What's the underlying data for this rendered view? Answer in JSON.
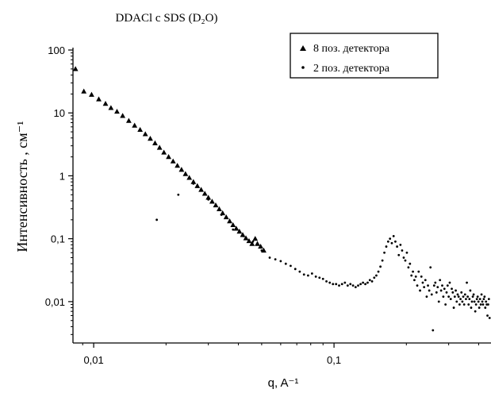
{
  "chart_data": {
    "type": "scatter",
    "title": "DDACl c SDS (D₂O)",
    "xlabel": "q, A⁻¹",
    "ylabel": "Интенсивность ,  см⁻¹",
    "x_scale": "log",
    "y_scale": "log",
    "xlim": [
      0.0082,
      0.45
    ],
    "ylim": [
      0.0022,
      100
    ],
    "x_ticks": [
      {
        "value": 0.01,
        "label": "0,01"
      },
      {
        "value": 0.1,
        "label": "0,1"
      }
    ],
    "y_ticks": [
      {
        "value": 100,
        "label": "100"
      },
      {
        "value": 10,
        "label": "10"
      },
      {
        "value": 1,
        "label": "1"
      },
      {
        "value": 0.1,
        "label": "0,1"
      },
      {
        "value": 0.01,
        "label": "0,01"
      }
    ],
    "legend_position": "top-right",
    "series": [
      {
        "name": "8 поз. детектора",
        "marker": "triangle",
        "points": [
          [
            0.0084,
            50
          ],
          [
            0.0091,
            22
          ],
          [
            0.0098,
            19.5
          ],
          [
            0.0105,
            16.5
          ],
          [
            0.0112,
            14
          ],
          [
            0.0118,
            12
          ],
          [
            0.0125,
            10.5
          ],
          [
            0.0132,
            9
          ],
          [
            0.014,
            7.5
          ],
          [
            0.0148,
            6.3
          ],
          [
            0.0156,
            5.4
          ],
          [
            0.0164,
            4.6
          ],
          [
            0.0172,
            3.9
          ],
          [
            0.018,
            3.3
          ],
          [
            0.0188,
            2.8
          ],
          [
            0.0196,
            2.35
          ],
          [
            0.0205,
            2
          ],
          [
            0.0214,
            1.7
          ],
          [
            0.0223,
            1.45
          ],
          [
            0.0232,
            1.25
          ],
          [
            0.0241,
            1.07
          ],
          [
            0.025,
            0.93
          ],
          [
            0.026,
            0.8
          ],
          [
            0.027,
            0.69
          ],
          [
            0.028,
            0.6
          ],
          [
            0.029,
            0.52
          ],
          [
            0.03,
            0.45
          ],
          [
            0.0311,
            0.39
          ],
          [
            0.0322,
            0.34
          ],
          [
            0.0333,
            0.295
          ],
          [
            0.0344,
            0.255
          ],
          [
            0.0356,
            0.22
          ],
          [
            0.0368,
            0.19
          ],
          [
            0.038,
            0.165
          ],
          [
            0.0392,
            0.145
          ],
          [
            0.0404,
            0.13
          ],
          [
            0.0417,
            0.115
          ],
          [
            0.043,
            0.102
          ],
          [
            0.0443,
            0.092
          ],
          [
            0.0456,
            0.083
          ],
          [
            0.047,
            0.1
          ],
          [
            0.048,
            0.083
          ],
          [
            0.0495,
            0.075
          ],
          [
            0.051,
            0.065
          ]
        ]
      },
      {
        "name": "2 поз. детектора",
        "marker": "dot",
        "points": [
          [
            0.0183,
            0.2
          ],
          [
            0.0225,
            0.5
          ],
          [
            0.026,
            0.75
          ],
          [
            0.03,
            0.42
          ],
          [
            0.034,
            0.24
          ],
          [
            0.038,
            0.14
          ],
          [
            0.042,
            0.11
          ],
          [
            0.046,
            0.09
          ],
          [
            0.05,
            0.065
          ],
          [
            0.054,
            0.05
          ],
          [
            0.057,
            0.047
          ],
          [
            0.06,
            0.044
          ],
          [
            0.063,
            0.04
          ],
          [
            0.066,
            0.037
          ],
          [
            0.069,
            0.033
          ],
          [
            0.072,
            0.03
          ],
          [
            0.075,
            0.027
          ],
          [
            0.078,
            0.026
          ],
          [
            0.081,
            0.028
          ],
          [
            0.084,
            0.025
          ],
          [
            0.087,
            0.024
          ],
          [
            0.09,
            0.023
          ],
          [
            0.093,
            0.021
          ],
          [
            0.096,
            0.02
          ],
          [
            0.099,
            0.019
          ],
          [
            0.102,
            0.019
          ],
          [
            0.105,
            0.018
          ],
          [
            0.108,
            0.019
          ],
          [
            0.111,
            0.02
          ],
          [
            0.114,
            0.018
          ],
          [
            0.117,
            0.019
          ],
          [
            0.12,
            0.018
          ],
          [
            0.123,
            0.017
          ],
          [
            0.126,
            0.018
          ],
          [
            0.129,
            0.019
          ],
          [
            0.132,
            0.02
          ],
          [
            0.135,
            0.019
          ],
          [
            0.138,
            0.02
          ],
          [
            0.141,
            0.022
          ],
          [
            0.144,
            0.021
          ],
          [
            0.147,
            0.024
          ],
          [
            0.15,
            0.026
          ],
          [
            0.153,
            0.03
          ],
          [
            0.156,
            0.036
          ],
          [
            0.159,
            0.045
          ],
          [
            0.162,
            0.06
          ],
          [
            0.165,
            0.075
          ],
          [
            0.168,
            0.09
          ],
          [
            0.171,
            0.1
          ],
          [
            0.174,
            0.085
          ],
          [
            0.177,
            0.11
          ],
          [
            0.18,
            0.09
          ],
          [
            0.183,
            0.075
          ],
          [
            0.186,
            0.055
          ],
          [
            0.189,
            0.08
          ],
          [
            0.192,
            0.065
          ],
          [
            0.195,
            0.05
          ],
          [
            0.198,
            0.045
          ],
          [
            0.201,
            0.06
          ],
          [
            0.204,
            0.035
          ],
          [
            0.207,
            0.04
          ],
          [
            0.21,
            0.026
          ],
          [
            0.213,
            0.03
          ],
          [
            0.216,
            0.022
          ],
          [
            0.219,
            0.025
          ],
          [
            0.222,
            0.018
          ],
          [
            0.225,
            0.03
          ],
          [
            0.228,
            0.015
          ],
          [
            0.231,
            0.025
          ],
          [
            0.234,
            0.02
          ],
          [
            0.237,
            0.017
          ],
          [
            0.24,
            0.022
          ],
          [
            0.243,
            0.012
          ],
          [
            0.246,
            0.018
          ],
          [
            0.249,
            0.015
          ],
          [
            0.252,
            0.035
          ],
          [
            0.255,
            0.013
          ],
          [
            0.258,
            0.0035
          ],
          [
            0.261,
            0.018
          ],
          [
            0.264,
            0.02
          ],
          [
            0.267,
            0.014
          ],
          [
            0.27,
            0.017
          ],
          [
            0.273,
            0.01
          ],
          [
            0.276,
            0.022
          ],
          [
            0.279,
            0.015
          ],
          [
            0.282,
            0.018
          ],
          [
            0.285,
            0.012
          ],
          [
            0.288,
            0.016
          ],
          [
            0.291,
            0.009
          ],
          [
            0.294,
            0.014
          ],
          [
            0.297,
            0.018
          ],
          [
            0.3,
            0.012
          ],
          [
            0.303,
            0.02
          ],
          [
            0.306,
            0.011
          ],
          [
            0.309,
            0.016
          ],
          [
            0.312,
            0.014
          ],
          [
            0.315,
            0.008
          ],
          [
            0.318,
            0.012
          ],
          [
            0.321,
            0.015
          ],
          [
            0.324,
            0.01
          ],
          [
            0.327,
            0.013
          ],
          [
            0.33,
            0.012
          ],
          [
            0.333,
            0.009
          ],
          [
            0.336,
            0.011
          ],
          [
            0.339,
            0.014
          ],
          [
            0.342,
            0.01
          ],
          [
            0.345,
            0.012
          ],
          [
            0.348,
            0.009
          ],
          [
            0.351,
            0.013
          ],
          [
            0.354,
            0.011
          ],
          [
            0.357,
            0.02
          ],
          [
            0.36,
            0.012
          ],
          [
            0.363,
            0.009
          ],
          [
            0.366,
            0.011
          ],
          [
            0.369,
            0.015
          ],
          [
            0.372,
            0.008
          ],
          [
            0.375,
            0.01
          ],
          [
            0.378,
            0.012
          ],
          [
            0.381,
            0.013
          ],
          [
            0.384,
            0.01
          ],
          [
            0.387,
            0.007
          ],
          [
            0.39,
            0.009
          ],
          [
            0.393,
            0.011
          ],
          [
            0.396,
            0.012
          ],
          [
            0.399,
            0.01
          ],
          [
            0.402,
            0.008
          ],
          [
            0.405,
            0.011
          ],
          [
            0.408,
            0.009
          ],
          [
            0.411,
            0.013
          ],
          [
            0.414,
            0.01
          ],
          [
            0.417,
            0.009
          ],
          [
            0.42,
            0.011
          ],
          [
            0.423,
            0.012
          ],
          [
            0.426,
            0.008
          ],
          [
            0.429,
            0.01
          ],
          [
            0.432,
            0.009
          ],
          [
            0.435,
            0.006
          ],
          [
            0.438,
            0.009
          ],
          [
            0.441,
            0.011
          ],
          [
            0.444,
            0.0055
          ]
        ]
      }
    ]
  }
}
